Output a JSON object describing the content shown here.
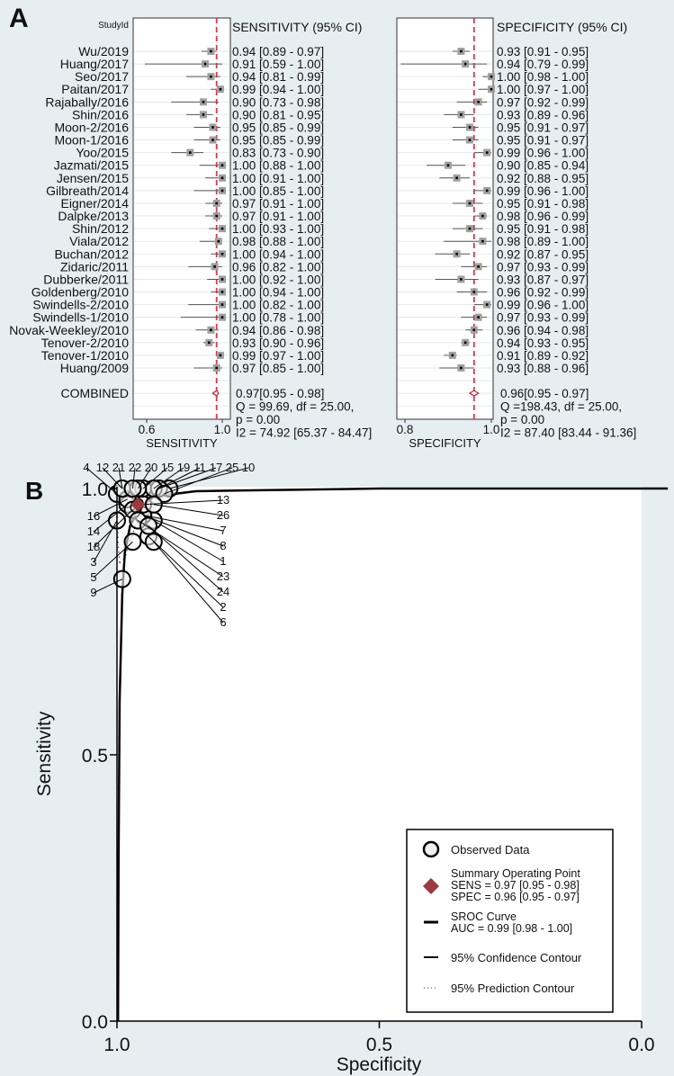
{
  "panel_a_label": "A",
  "panel_b_label": "B",
  "chart_data": [
    {
      "type": "forest",
      "id": "sensitivity",
      "study_header": "StudyId",
      "column_header": "SENSITIVITY (95% CI)",
      "xlabel": "SENSITIVITY",
      "xticks": [
        "0.6",
        "1.0"
      ],
      "xlim": [
        0.6,
        1.0
      ],
      "reference_line": 0.97,
      "studies": [
        "Wu/2019",
        "Huang/2017",
        "Seo/2017",
        "Paitan/2017",
        "Rajabally/2016",
        "Shin/2016",
        "Moon-2/2016",
        "Moon-1/2016",
        "Yoo/2015",
        "Jazmati/2015",
        "Jensen/2015",
        "Gilbreath/2014",
        "Eigner/2014",
        "Dalpke/2013",
        "Shin/2012",
        "Viala/2012",
        "Buchan/2012",
        "Zidaric/2011",
        "Dubberke/2011",
        "Goldenberg/2010",
        "Swindells-2/2010",
        "Swindells-1/2010",
        "Novak-Weekley/2010",
        "Tenover-2/2010",
        "Tenover-1/2010",
        "Huang/2009"
      ],
      "values": [
        0.94,
        0.91,
        0.94,
        0.99,
        0.9,
        0.9,
        0.95,
        0.95,
        0.83,
        1.0,
        1.0,
        1.0,
        0.97,
        0.97,
        1.0,
        0.98,
        1.0,
        0.96,
        1.0,
        1.0,
        1.0,
        1.0,
        0.94,
        0.93,
        0.99,
        0.97
      ],
      "ci_low": [
        0.89,
        0.59,
        0.81,
        0.94,
        0.73,
        0.81,
        0.85,
        0.85,
        0.73,
        0.88,
        0.91,
        0.85,
        0.91,
        0.91,
        0.93,
        0.88,
        0.94,
        0.82,
        0.92,
        0.94,
        0.82,
        0.78,
        0.86,
        0.9,
        0.97,
        0.85
      ],
      "ci_high": [
        0.97,
        1.0,
        0.99,
        1.0,
        0.98,
        0.95,
        0.99,
        0.99,
        0.9,
        1.0,
        1.0,
        1.0,
        1.0,
        1.0,
        1.0,
        1.0,
        1.0,
        1.0,
        1.0,
        1.0,
        1.0,
        1.0,
        0.98,
        0.96,
        1.0,
        1.0
      ],
      "combined_label": "COMBINED",
      "combined": {
        "value": 0.97,
        "ci_low": 0.95,
        "ci_high": 0.98
      },
      "stats": [
        "0.97[0.95 - 0.98]",
        "Q = 99.69, df = 25.00,",
        "p =  0.00",
        "I2 = 74.92 [65.37 - 84.47]"
      ]
    },
    {
      "type": "forest",
      "id": "specificity",
      "column_header": "SPECIFICITY (95% CI)",
      "xlabel": "SPECIFICITY",
      "xticks": [
        "0.8",
        "1.0"
      ],
      "xlim": [
        0.8,
        1.0
      ],
      "reference_line": 0.96,
      "values": [
        0.93,
        0.94,
        1.0,
        1.0,
        0.97,
        0.93,
        0.95,
        0.95,
        0.99,
        0.9,
        0.92,
        0.99,
        0.95,
        0.98,
        0.95,
        0.98,
        0.92,
        0.97,
        0.93,
        0.96,
        0.99,
        0.97,
        0.96,
        0.94,
        0.91,
        0.93
      ],
      "ci_low": [
        0.91,
        0.79,
        0.98,
        0.97,
        0.92,
        0.89,
        0.91,
        0.91,
        0.96,
        0.85,
        0.88,
        0.96,
        0.91,
        0.96,
        0.91,
        0.89,
        0.87,
        0.93,
        0.87,
        0.92,
        0.96,
        0.93,
        0.94,
        0.93,
        0.89,
        0.88
      ],
      "ci_high": [
        0.95,
        0.99,
        1.0,
        1.0,
        0.99,
        0.96,
        0.97,
        0.97,
        1.0,
        0.94,
        0.95,
        1.0,
        0.98,
        0.99,
        0.98,
        1.0,
        0.95,
        0.99,
        0.97,
        0.99,
        1.0,
        0.99,
        0.98,
        0.95,
        0.92,
        0.96
      ],
      "combined": {
        "value": 0.96,
        "ci_low": 0.95,
        "ci_high": 0.97
      },
      "stats": [
        "0.96[0.95 - 0.97]",
        "Q =198.43, df = 25.00,",
        "p =  0.00",
        "I2 = 87.40 [83.44 - 91.36]"
      ]
    },
    {
      "type": "scatter",
      "id": "sroc",
      "xlabel": "Specificity",
      "ylabel": "Sensitivity",
      "xlim": [
        1.0,
        0.0
      ],
      "ylim": [
        0.0,
        1.0
      ],
      "xticks": [
        "1.0",
        "0.5",
        "0.0"
      ],
      "yticks": [
        "0.0",
        "0.5",
        "1.0"
      ],
      "point_labels": [
        "1",
        "2",
        "3",
        "4",
        "5",
        "6",
        "7",
        "8",
        "9",
        "10",
        "11",
        "12",
        "13",
        "14",
        "15",
        "16",
        "17",
        "18",
        "19",
        "20",
        "21",
        "22",
        "23",
        "24",
        "25",
        "26"
      ],
      "summary_point": {
        "sens": 0.97,
        "spec": 0.96
      },
      "legend": {
        "position": "bottom-right",
        "observed": "Observed Data",
        "summary": [
          "Summary Operating Point",
          "SENS = 0.97 [0.95 - 0.98]",
          "SPEC = 0.96 [0.95 - 0.97]"
        ],
        "sroc": [
          "SROC Curve",
          "AUC = 0.99 [0.98 - 1.00]"
        ],
        "confidence": "95% Confidence Contour",
        "prediction": "95% Prediction Contour"
      },
      "colors": {
        "summary": "#9b3a3f",
        "reference": "#d9364d"
      }
    }
  ]
}
